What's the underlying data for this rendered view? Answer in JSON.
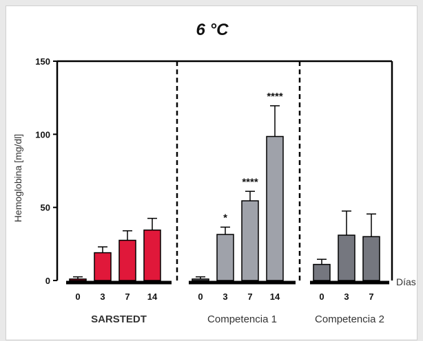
{
  "chart_data": {
    "type": "bar",
    "title": "6 °C",
    "ylabel": "Hemoglobina [mg/dl]",
    "xunit": "Días",
    "ylim": [
      0,
      150
    ],
    "yticks": [
      "0",
      "50",
      "100",
      "150"
    ],
    "grid": false,
    "groups": [
      {
        "name": "SARSTEDT",
        "color": "#e0183a",
        "label_color": "#d81e3a",
        "categories": [
          "0",
          "3",
          "7",
          "14"
        ],
        "values": [
          1,
          19,
          27.5,
          34.5
        ],
        "errors": [
          1.5,
          4,
          6.5,
          8
        ],
        "significance": [
          "",
          "",
          "",
          ""
        ]
      },
      {
        "name": "Competencia 1",
        "color": "#9fa2aa",
        "label_color": "#333333",
        "categories": [
          "0",
          "3",
          "7",
          "14"
        ],
        "values": [
          1,
          31.5,
          54.5,
          98.5
        ],
        "errors": [
          1.5,
          5,
          6.5,
          21
        ],
        "significance": [
          "",
          "*",
          "****",
          "****"
        ]
      },
      {
        "name": "Competencia 2",
        "color": "#75777f",
        "label_color": "#333333",
        "categories": [
          "0",
          "3",
          "7"
        ],
        "values": [
          11,
          31,
          30
        ],
        "errors": [
          3.5,
          16.5,
          15.5
        ],
        "significance": [
          "",
          "",
          ""
        ]
      }
    ]
  }
}
